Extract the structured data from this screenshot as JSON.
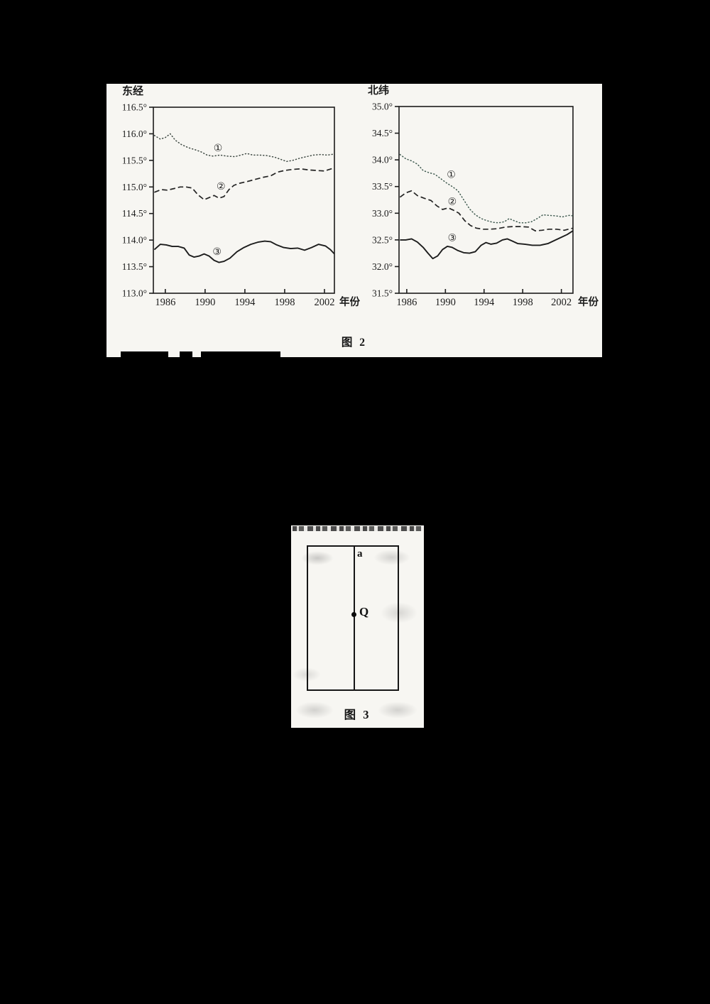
{
  "page": {
    "background": "#000000",
    "paper_color": "#f7f6f2",
    "ink_color": "#1c1c1c"
  },
  "figure2": {
    "caption": "图 2"
  },
  "figure3": {
    "caption": "图 3",
    "line_label": "a",
    "point_label": "Q"
  },
  "chart_data": [
    {
      "type": "line",
      "title": "东经",
      "xlabel": "年份",
      "x_ticks": [
        1986,
        1990,
        1994,
        1998,
        2002
      ],
      "x_range": [
        1984.8,
        2003.0
      ],
      "y_ticks": [
        116.5,
        116.0,
        115.5,
        115.0,
        114.5,
        114.0,
        113.5,
        113.0
      ],
      "y_range": [
        113.0,
        116.5
      ],
      "y_tick_suffix": "°",
      "grid": false,
      "legend_position": "inline-annotations",
      "series": [
        {
          "name": "①",
          "style": "dotted",
          "color": "#3f4a44",
          "label_at": [
            1991.3,
            115.73
          ],
          "x": [
            1984.9,
            1985.5,
            1986.0,
            1986.5,
            1987.0,
            1987.6,
            1988.3,
            1989.0,
            1989.6,
            1990.2,
            1990.8,
            1991.5,
            1992.2,
            1993.0,
            1993.6,
            1994.2,
            1994.8,
            1995.5,
            1996.2,
            1997.0,
            1997.6,
            1998.2,
            1998.8,
            1999.5,
            2000.2,
            2000.9,
            2001.6,
            2002.3,
            2003.0
          ],
          "y": [
            115.97,
            115.9,
            115.93,
            116.0,
            115.88,
            115.8,
            115.74,
            115.7,
            115.66,
            115.6,
            115.58,
            115.6,
            115.58,
            115.57,
            115.6,
            115.63,
            115.6,
            115.6,
            115.59,
            115.56,
            115.52,
            115.48,
            115.5,
            115.54,
            115.57,
            115.6,
            115.61,
            115.6,
            115.62
          ]
        },
        {
          "name": "②",
          "style": "dashed",
          "color": "#242424",
          "label_at": [
            1991.6,
            115.01
          ],
          "x": [
            1984.9,
            1985.6,
            1986.2,
            1986.9,
            1987.5,
            1988.1,
            1988.7,
            1989.3,
            1989.9,
            1990.4,
            1990.9,
            1991.4,
            1991.9,
            1992.4,
            1992.9,
            1993.5,
            1994.2,
            1995.0,
            1995.8,
            1996.6,
            1997.3,
            1998.0,
            1998.8,
            1999.6,
            2000.4,
            2001.2,
            2002.0,
            2003.0
          ],
          "y": [
            114.9,
            114.95,
            114.94,
            114.97,
            115.0,
            115.0,
            114.98,
            114.85,
            114.76,
            114.8,
            114.84,
            114.79,
            114.82,
            114.95,
            115.03,
            115.07,
            115.1,
            115.14,
            115.18,
            115.21,
            115.28,
            115.31,
            115.33,
            115.34,
            115.32,
            115.31,
            115.3,
            115.36
          ]
        },
        {
          "name": "③",
          "style": "solid",
          "color": "#1c1c1c",
          "label_at": [
            1991.2,
            113.78
          ],
          "x": [
            1984.9,
            1985.5,
            1986.1,
            1986.7,
            1987.3,
            1987.9,
            1988.4,
            1988.9,
            1989.4,
            1989.9,
            1990.4,
            1990.9,
            1991.4,
            1991.9,
            1992.5,
            1993.2,
            1993.9,
            1994.6,
            1995.3,
            1996.0,
            1996.6,
            1997.2,
            1997.9,
            1998.6,
            1999.3,
            2000.0,
            2000.7,
            2001.4,
            2002.1,
            2002.6,
            2003.0
          ],
          "y": [
            113.82,
            113.92,
            113.91,
            113.88,
            113.88,
            113.85,
            113.72,
            113.68,
            113.7,
            113.74,
            113.7,
            113.62,
            113.58,
            113.6,
            113.66,
            113.78,
            113.86,
            113.92,
            113.96,
            113.98,
            113.97,
            113.91,
            113.86,
            113.84,
            113.85,
            113.81,
            113.86,
            113.92,
            113.89,
            113.82,
            113.74
          ]
        }
      ]
    },
    {
      "type": "line",
      "title": "北纬",
      "xlabel": "年份",
      "x_ticks": [
        1986,
        1990,
        1994,
        1998,
        2002
      ],
      "x_range": [
        1985.2,
        2003.2
      ],
      "y_ticks": [
        35.0,
        34.5,
        34.0,
        33.5,
        33.0,
        32.5,
        32.0,
        31.5
      ],
      "y_range": [
        31.5,
        35.0
      ],
      "y_tick_suffix": "°",
      "grid": false,
      "legend_position": "inline-annotations",
      "series": [
        {
          "name": "①",
          "style": "dotted",
          "color": "#3f5a50",
          "label_at": [
            1990.6,
            33.72
          ],
          "x": [
            1985.3,
            1985.9,
            1986.5,
            1987.1,
            1987.7,
            1988.3,
            1988.9,
            1989.5,
            1990.1,
            1990.7,
            1991.3,
            1991.9,
            1992.5,
            1993.1,
            1993.7,
            1994.3,
            1994.9,
            1995.5,
            1996.1,
            1996.6,
            1997.1,
            1997.7,
            1998.3,
            1998.9,
            1999.5,
            2000.1,
            2000.7,
            2001.4,
            2002.1,
            2002.8,
            2003.2
          ],
          "y": [
            34.1,
            34.02,
            33.98,
            33.92,
            33.8,
            33.76,
            33.73,
            33.65,
            33.57,
            33.5,
            33.42,
            33.25,
            33.08,
            32.97,
            32.9,
            32.86,
            32.83,
            32.82,
            32.84,
            32.9,
            32.86,
            32.82,
            32.82,
            32.84,
            32.9,
            32.97,
            32.96,
            32.95,
            32.93,
            32.96,
            32.95
          ]
        },
        {
          "name": "②",
          "style": "dashed",
          "color": "#242424",
          "label_at": [
            1990.7,
            33.22
          ],
          "x": [
            1985.3,
            1985.9,
            1986.5,
            1987.1,
            1987.8,
            1988.5,
            1989.1,
            1989.7,
            1990.3,
            1990.8,
            1991.4,
            1992.0,
            1992.6,
            1993.2,
            1993.9,
            1994.6,
            1995.4,
            1996.2,
            1997.0,
            1997.8,
            1998.6,
            1999.3,
            2000.0,
            2000.7,
            2001.5,
            2002.3,
            2003.2
          ],
          "y": [
            33.3,
            33.38,
            33.42,
            33.33,
            33.28,
            33.24,
            33.14,
            33.07,
            33.1,
            33.06,
            33.0,
            32.86,
            32.77,
            32.72,
            32.7,
            32.7,
            32.71,
            32.74,
            32.75,
            32.75,
            32.74,
            32.67,
            32.68,
            32.7,
            32.7,
            32.68,
            32.72
          ]
        },
        {
          "name": "③",
          "style": "solid",
          "color": "#1c1c1c",
          "label_at": [
            1990.7,
            32.54
          ],
          "x": [
            1985.3,
            1985.9,
            1986.5,
            1987.1,
            1987.7,
            1988.2,
            1988.7,
            1989.2,
            1989.7,
            1990.2,
            1990.7,
            1991.3,
            1991.9,
            1992.5,
            1993.1,
            1993.7,
            1994.2,
            1994.7,
            1995.3,
            1995.9,
            1996.4,
            1996.9,
            1997.5,
            1998.2,
            1999.0,
            1999.8,
            2000.6,
            2001.3,
            2002.0,
            2002.6,
            2003.2
          ],
          "y": [
            32.5,
            32.5,
            32.52,
            32.46,
            32.36,
            32.25,
            32.15,
            32.2,
            32.32,
            32.38,
            32.36,
            32.3,
            32.26,
            32.25,
            32.28,
            32.4,
            32.45,
            32.42,
            32.44,
            32.5,
            32.52,
            32.48,
            32.43,
            32.42,
            32.4,
            32.4,
            32.43,
            32.49,
            32.55,
            32.6,
            32.67
          ]
        }
      ]
    }
  ]
}
